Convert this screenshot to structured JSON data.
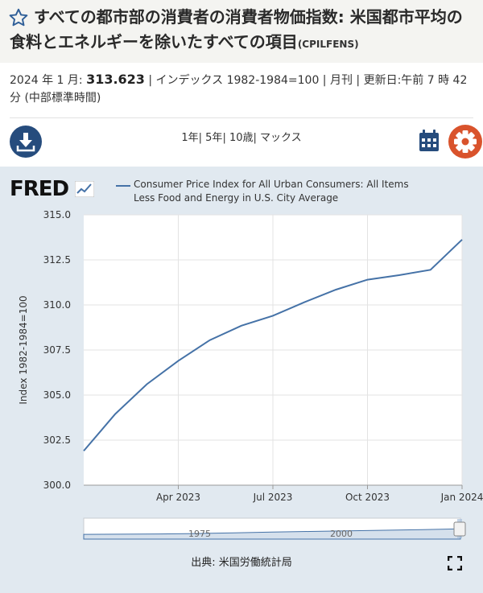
{
  "header": {
    "title": "すべての都市部の消費者の消費者物価指数: 米国都市平均の食料とエネルギーを除いたすべての項目",
    "series_id": "(CPILFENS)"
  },
  "meta": {
    "date": "2024 年 1 月:",
    "value": "313.623",
    "details": "| インデックス 1982-1984=100 | 月刊 | 更新日:午前 7 時 42 分 (中部標準時間)"
  },
  "toolbar": {
    "ranges": [
      "1年",
      "5年",
      "10歳",
      "マックス"
    ],
    "download_icon": "download-icon",
    "calendar_icon": "calendar-icon",
    "settings_icon": "gear-icon"
  },
  "chart": {
    "logo": "FRED",
    "legend": "Consumer Price Index for All Urban Consumers: All Items Less Food and Energy in U.S. City Average",
    "source": "出典: 米国労働統計局"
  },
  "colors": {
    "line": "#4572a7",
    "panel": "#e1e9f0",
    "accent_red": "#d9532c",
    "navy": "#264c7d"
  },
  "chart_data": {
    "type": "line",
    "x": [
      "2023-01",
      "2023-02",
      "2023-03",
      "2023-04",
      "2023-05",
      "2023-06",
      "2023-07",
      "2023-08",
      "2023-09",
      "2023-10",
      "2023-11",
      "2023-12",
      "2024-01"
    ],
    "series": [
      {
        "values": [
          301.9,
          303.95,
          305.6,
          306.9,
          308.05,
          308.85,
          309.4,
          310.15,
          310.85,
          311.4,
          311.65,
          311.95,
          313.623
        ]
      }
    ],
    "ylabel": "Index 1982-1984=100",
    "xlabel": "",
    "ylim": [
      300.0,
      315.0
    ],
    "yticks": [
      "300.0",
      "302.5",
      "305.0",
      "307.5",
      "310.0",
      "312.5",
      "315.0"
    ],
    "xticks": [
      {
        "label": "Apr 2023",
        "x": "2023-04"
      },
      {
        "label": "Jul 2023",
        "x": "2023-07"
      },
      {
        "label": "Oct 2023",
        "x": "2023-10"
      },
      {
        "label": "Jan 2024",
        "x": "2024-01"
      }
    ],
    "grid": true,
    "navigator": {
      "labels": [
        "1975",
        "2000"
      ],
      "trend": [
        30,
        32,
        35,
        40,
        48,
        58,
        66,
        74,
        82,
        90,
        100
      ]
    }
  }
}
